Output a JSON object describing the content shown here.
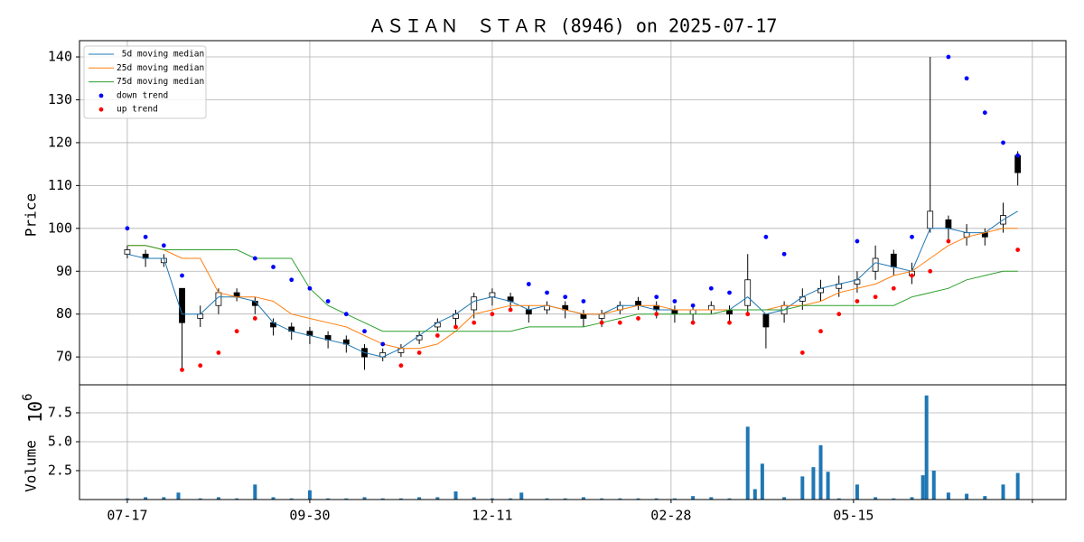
{
  "chart_data": [
    {
      "type": "candlestick",
      "title": "ＡＳＩＡＮ　ＳＴＡＲ (8946) on 2025-07-17",
      "ylabel": "Price",
      "x": [
        0,
        5,
        10,
        15,
        20,
        25,
        30,
        35,
        40,
        45,
        50,
        55,
        60,
        65,
        70,
        75,
        80,
        85,
        90,
        95,
        100,
        105,
        110,
        115,
        120,
        125,
        130,
        135,
        140,
        145,
        150,
        155,
        160,
        165,
        170,
        175,
        180,
        185,
        190,
        195,
        200,
        205,
        210,
        215,
        220,
        225,
        230,
        235,
        240,
        244
      ],
      "xlim": [
        -13.1,
        257.2
      ],
      "xticks": [
        0,
        50,
        100,
        149,
        199,
        248
      ],
      "ylim": [
        63.5,
        143.8
      ],
      "yticks": [
        70,
        80,
        90,
        100,
        110,
        120,
        130,
        140
      ],
      "grid": true,
      "legend": "upper left",
      "open": [
        94,
        94,
        92,
        86,
        79,
        82,
        85,
        83,
        78,
        77,
        76,
        75,
        74,
        72,
        70,
        71,
        74,
        77,
        79,
        81,
        84,
        84,
        81,
        81,
        82,
        80,
        79,
        81,
        83,
        82,
        81,
        80,
        81,
        81,
        82,
        80,
        80,
        83,
        85,
        86,
        87,
        90,
        94,
        89,
        100,
        102,
        98,
        99,
        101,
        117
      ],
      "high": [
        96,
        95,
        94,
        86,
        82,
        86,
        86,
        84,
        79,
        78,
        77,
        76,
        75,
        73,
        72,
        73,
        76,
        79,
        81,
        85,
        86,
        85,
        82,
        83,
        83,
        81,
        81,
        83,
        84,
        83,
        82,
        82,
        83,
        82,
        94,
        80,
        83,
        86,
        88,
        89,
        90,
        96,
        95,
        92,
        140,
        103,
        101,
        100,
        106,
        118
      ],
      "low": [
        93,
        91,
        91,
        67,
        77,
        80,
        83,
        80,
        75,
        74,
        73,
        72,
        71,
        67,
        69,
        70,
        73,
        76,
        77,
        79,
        82,
        81,
        78,
        80,
        79,
        77,
        77,
        80,
        81,
        79,
        78,
        78,
        80,
        78,
        80,
        72,
        78,
        81,
        83,
        84,
        85,
        88,
        89,
        87,
        99,
        97,
        96,
        96,
        99,
        110
      ],
      "close": [
        95,
        93,
        93,
        78,
        80,
        85,
        84,
        82,
        77,
        76,
        75,
        74,
        73,
        70,
        71,
        72,
        75,
        78,
        80,
        84,
        85,
        83,
        80,
        82,
        81,
        79,
        80,
        82,
        82,
        81,
        80,
        81,
        82,
        80,
        88,
        77,
        82,
        84,
        86,
        87,
        88,
        93,
        91,
        90,
        104,
        100,
        99,
        98,
        103,
        113
      ],
      "series": [
        {
          "name": " 5d moving median",
          "color": "#1f77b4",
          "style": "line",
          "values": [
            94,
            93,
            93,
            80,
            80,
            84,
            84,
            83,
            78,
            76,
            75,
            74,
            73,
            71,
            70,
            72,
            75,
            78,
            80,
            83,
            84,
            83,
            81,
            82,
            81,
            80,
            80,
            82,
            82,
            81,
            81,
            81,
            81,
            81,
            84,
            80,
            81,
            84,
            86,
            87,
            88,
            92,
            91,
            90,
            100,
            100,
            99,
            99,
            102,
            104
          ]
        },
        {
          "name": "25d moving median",
          "color": "#ff7f0e",
          "style": "line",
          "values": [
            96,
            96,
            95,
            93,
            93,
            85,
            84,
            84,
            83,
            80,
            79,
            78,
            77,
            75,
            73,
            72,
            72,
            73,
            76,
            80,
            81,
            82,
            82,
            82,
            81,
            80,
            80,
            81,
            82,
            82,
            81,
            81,
            81,
            81,
            81,
            81,
            82,
            82,
            83,
            85,
            86,
            87,
            89,
            90,
            93,
            96,
            98,
            99,
            100,
            100
          ]
        },
        {
          "name": "75d moving median",
          "color": "#2ca02c",
          "style": "line",
          "values": [
            96,
            96,
            95,
            95,
            95,
            95,
            95,
            93,
            93,
            93,
            86,
            82,
            80,
            78,
            76,
            76,
            76,
            76,
            76,
            76,
            76,
            76,
            77,
            77,
            77,
            77,
            78,
            79,
            80,
            80,
            80,
            80,
            80,
            81,
            81,
            81,
            81,
            82,
            82,
            82,
            82,
            82,
            82,
            84,
            85,
            86,
            88,
            89,
            90,
            90
          ]
        },
        {
          "name": "down trend",
          "color": "blue",
          "style": "scatter",
          "values": [
            100,
            98,
            96,
            89,
            null,
            null,
            null,
            93,
            91,
            88,
            86,
            83,
            80,
            76,
            73,
            null,
            null,
            null,
            null,
            null,
            null,
            null,
            87,
            85,
            84,
            83,
            null,
            null,
            null,
            84,
            83,
            82,
            86,
            85,
            null,
            98,
            94,
            null,
            null,
            null,
            97,
            null,
            null,
            98,
            null,
            140,
            135,
            127,
            120,
            117
          ]
        },
        {
          "name": "up trend",
          "color": "red",
          "style": "scatter",
          "values": [
            null,
            null,
            null,
            67,
            68,
            71,
            76,
            79,
            null,
            null,
            null,
            null,
            null,
            null,
            null,
            68,
            71,
            75,
            77,
            78,
            80,
            81,
            null,
            null,
            null,
            null,
            78,
            78,
            79,
            80,
            null,
            78,
            null,
            78,
            80,
            null,
            null,
            71,
            76,
            80,
            83,
            84,
            86,
            89,
            90,
            97,
            null,
            null,
            null,
            95
          ]
        }
      ]
    },
    {
      "type": "bar",
      "ylabel": "Volume",
      "offset_base": "10",
      "offset_exponent": "6",
      "color": "#1f77b4",
      "x": [
        0,
        5,
        10,
        14,
        20,
        25,
        30,
        35,
        40,
        45,
        50,
        55,
        60,
        65,
        70,
        75,
        80,
        85,
        90,
        95,
        100,
        105,
        108,
        115,
        120,
        125,
        130,
        135,
        140,
        145,
        150,
        155,
        160,
        165,
        170,
        172,
        174,
        180,
        185,
        188,
        190,
        192,
        195,
        200,
        205,
        210,
        215,
        218,
        219,
        221,
        225,
        230,
        235,
        240,
        244
      ],
      "values": [
        0.1,
        0.2,
        0.2,
        0.6,
        0.1,
        0.2,
        0.1,
        1.3,
        0.2,
        0.1,
        0.8,
        0.1,
        0.1,
        0.2,
        0.1,
        0.1,
        0.2,
        0.2,
        0.7,
        0.2,
        0.1,
        0.1,
        0.6,
        0.1,
        0.1,
        0.2,
        0.1,
        0.1,
        0.1,
        0.1,
        0.1,
        0.3,
        0.2,
        0.1,
        6.3,
        0.9,
        3.1,
        0.2,
        2.0,
        2.8,
        4.7,
        2.4,
        0.1,
        1.3,
        0.2,
        0.1,
        0.2,
        2.1,
        9.0,
        2.5,
        0.6,
        0.5,
        0.3,
        1.3,
        2.3
      ],
      "xlim": [
        -13.1,
        257.2
      ],
      "xticks": [
        {
          "value": 0,
          "label": "07-17"
        },
        {
          "value": 50,
          "label": "09-30"
        },
        {
          "value": 100,
          "label": "12-11"
        },
        {
          "value": 149,
          "label": "02-28"
        },
        {
          "value": 199,
          "label": "05-15"
        },
        {
          "value": 248,
          "label": null
        }
      ],
      "ylim": [
        0,
        9.92
      ],
      "yticks": [
        2.5,
        {
          "value": 5,
          "label": "5.0"
        },
        7.5
      ],
      "grid": true
    }
  ]
}
